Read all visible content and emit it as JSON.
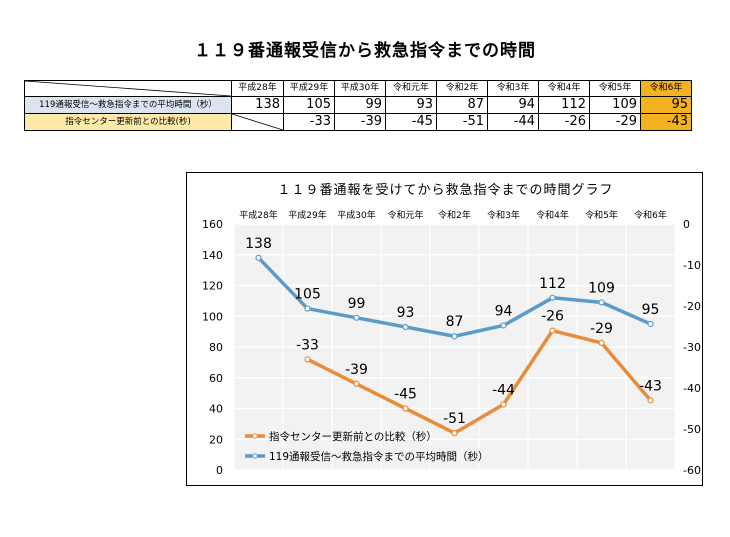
{
  "page": {
    "title": "１１９番通報受信から救急指令までの時間"
  },
  "table": {
    "headers": [
      "平成28年",
      "平成29年",
      "平成30年",
      "令和元年",
      "令和2年",
      "令和3年",
      "令和4年",
      "令和5年",
      "令和6年"
    ],
    "rows": [
      {
        "label": "119通報受信～救急指令までの平均時間（秒）",
        "values": [
          "138",
          "105",
          "99",
          "93",
          "87",
          "94",
          "112",
          "109",
          "95"
        ]
      },
      {
        "label": "指令センター更新前との比較(秒)",
        "values": [
          "",
          "-33",
          "-39",
          "-45",
          "-51",
          "-44",
          "-26",
          "-29",
          "-43"
        ]
      }
    ],
    "highlight_color": "#f5b220"
  },
  "chart_data": {
    "type": "line",
    "title": "１１９番通報を受けてから救急指令までの時間グラフ",
    "categories": [
      "平成28年",
      "平成29年",
      "平成30年",
      "令和元年",
      "令和2年",
      "令和3年",
      "令和4年",
      "令和5年",
      "令和6年"
    ],
    "y_left": {
      "range": [
        0,
        160
      ],
      "ticks": [
        0,
        20,
        40,
        60,
        80,
        100,
        120,
        140,
        160
      ]
    },
    "y_right": {
      "range": [
        -60,
        0
      ],
      "ticks": [
        0,
        -10,
        -20,
        -30,
        -40,
        -50,
        -60
      ]
    },
    "grid": true,
    "legend_position": "bottom-left",
    "series": [
      {
        "name": "119通報受信～救急指令までの平均時間（秒）",
        "axis": "left",
        "color": "#5b9bc8",
        "values": [
          138,
          105,
          99,
          93,
          87,
          94,
          112,
          109,
          95
        ]
      },
      {
        "name": "指令センター更新前との比較（秒）",
        "axis": "right",
        "color": "#e88b3a",
        "values": [
          null,
          -33,
          -39,
          -45,
          -51,
          -44,
          -26,
          -29,
          -43
        ]
      }
    ],
    "legend": [
      {
        "label": "指令センター更新前との比較（秒）",
        "color": "#e88b3a"
      },
      {
        "label": "119通報受信～救急指令までの平均時間（秒）",
        "color": "#5b9bc8"
      }
    ]
  }
}
